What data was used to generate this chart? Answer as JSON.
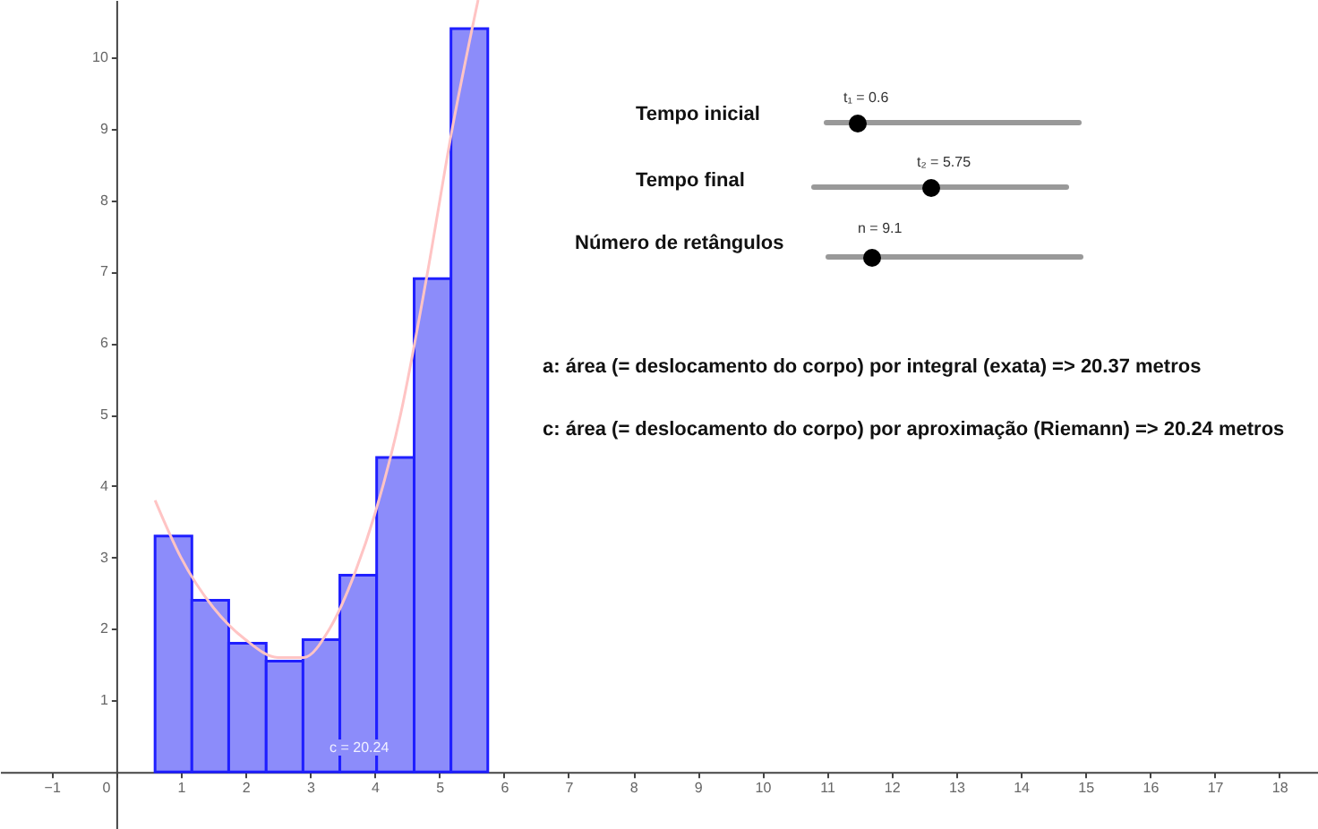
{
  "chart_data": {
    "type": "histogram",
    "series": [
      {
        "type": "histogram",
        "bins": [
          0.6,
          1.17,
          1.74,
          2.32,
          2.89,
          3.46,
          4.03,
          4.61,
          5.18,
          5.75
        ],
        "values": [
          3.3,
          2.4,
          1.8,
          1.55,
          1.85,
          2.75,
          4.4,
          6.9,
          10.4
        ],
        "color": "#8c8cfa"
      },
      {
        "type": "line",
        "x": [
          0.6,
          1.0,
          1.5,
          2.0,
          2.5,
          2.9,
          3.3,
          3.7,
          4.0,
          4.4,
          4.8,
          5.2,
          5.6
        ],
        "values": [
          3.8,
          3.0,
          2.3,
          1.85,
          1.6,
          1.6,
          2.0,
          2.8,
          3.6,
          5.0,
          6.9,
          9.0,
          10.8
        ],
        "color": "#ffc4c4"
      }
    ],
    "xlim": [
      -1.8,
      18.6
    ],
    "ylim": [
      -0.8,
      10.8
    ],
    "xticks": [
      -1,
      0,
      1,
      2,
      3,
      4,
      5,
      6,
      7,
      8,
      9,
      10,
      11,
      12,
      13,
      14,
      15,
      16,
      17,
      18
    ],
    "yticks": [
      1,
      2,
      3,
      4,
      5,
      6,
      7,
      8,
      9,
      10
    ],
    "annotations": [
      "Tempo inicial",
      "t₁ = 0.6",
      "Tempo final",
      "t₂ = 5.75",
      "Número de retângulos",
      "n = 9.1",
      "a: área (= deslocamento do corpo) por integral (exata) => 20.37 metros",
      "c: área (= deslocamento do corpo) por aproximação (Riemann) => 20.24 metros",
      "c = 20.24"
    ],
    "grid": false
  }
}
